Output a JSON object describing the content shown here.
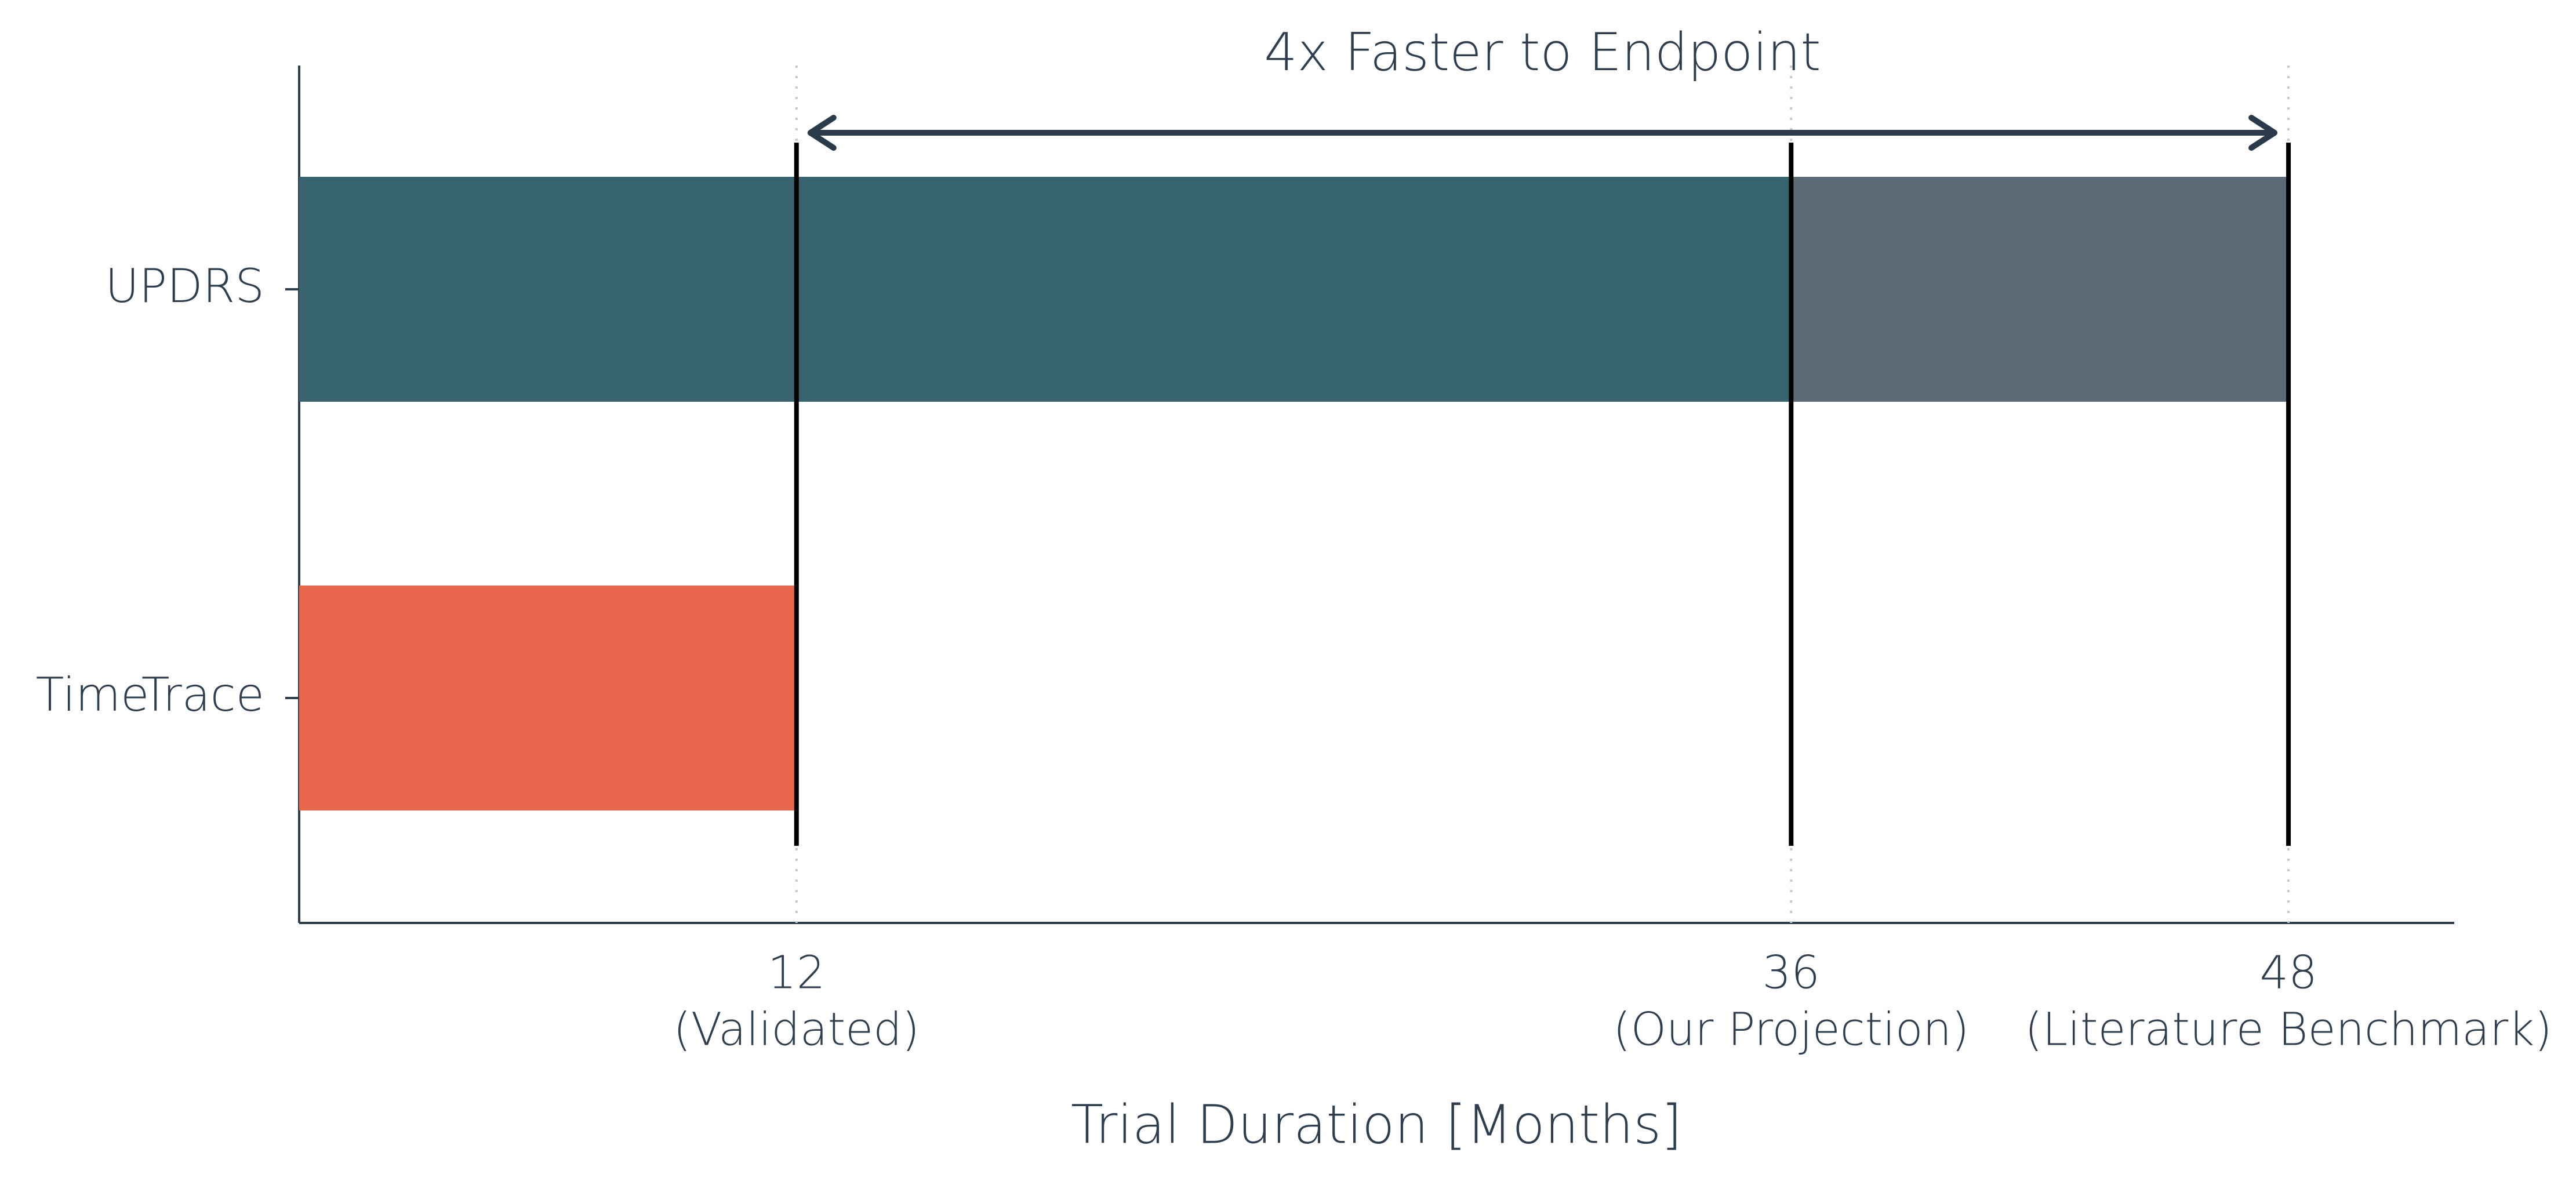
{
  "chart_data": {
    "type": "stacked-barh",
    "categories": [
      "UPDRS",
      "TimeTrace"
    ],
    "bars": [
      {
        "segments": [
          {
            "value": 36,
            "color": "#37646f"
          },
          {
            "value": 12,
            "color": "#5a6b75"
          }
        ]
      },
      {
        "segments": [
          {
            "value": 12,
            "color": "#e9674c"
          }
        ]
      }
    ],
    "xlim": [
      0,
      52
    ],
    "xticks": [
      12,
      36,
      48
    ],
    "xtick_notes": [
      "(Validated)",
      "(Our Projection)",
      "(Literature Benchmark)"
    ],
    "xlabel": "Trial Duration [Months]",
    "vlines": [
      12,
      36,
      48
    ],
    "arrow": {
      "from": 12,
      "to": 48,
      "label": "4x Faster to Endpoint",
      "color": "#2b3a4a"
    },
    "grid": true
  }
}
